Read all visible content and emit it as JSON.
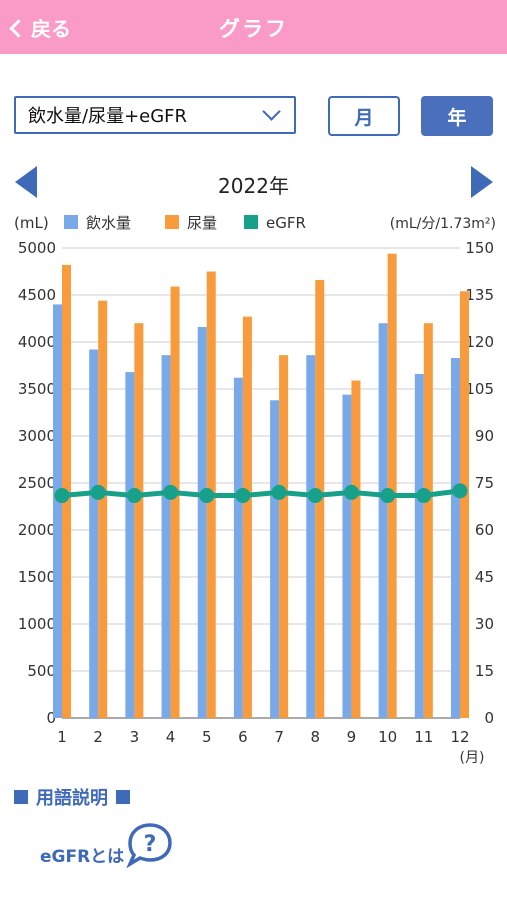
{
  "header": {
    "back_label": "戻る",
    "title": "グラフ"
  },
  "controls": {
    "selected_metric": "飲水量/尿量+eGFR",
    "month_label": "月",
    "year_label": "年",
    "period_label": "2022年"
  },
  "chart_data": {
    "type": "bar",
    "categories": [
      "1",
      "2",
      "3",
      "4",
      "5",
      "6",
      "7",
      "8",
      "9",
      "10",
      "11",
      "12"
    ],
    "x_unit": "(月)",
    "left_unit": "(mL)",
    "right_unit": "(mL/分/1.73m²)",
    "left_ylim": [
      0,
      5000
    ],
    "right_ylim": [
      0,
      150
    ],
    "left_ticks": [
      "0",
      "500",
      "1000",
      "1500",
      "2000",
      "2500",
      "3000",
      "3500",
      "4000",
      "4500",
      "5000"
    ],
    "right_ticks": [
      "0",
      "15",
      "30",
      "45",
      "60",
      "75",
      "90",
      "105",
      "120",
      "135",
      "150"
    ],
    "grid": true,
    "legend_position": "top",
    "series": [
      {
        "name": "飲水量",
        "type": "bar",
        "axis": "left",
        "color": "#7aa9ea",
        "values": [
          4400,
          3920,
          3680,
          3860,
          4160,
          3620,
          3380,
          3860,
          3440,
          4200,
          3660,
          3830
        ]
      },
      {
        "name": "尿量",
        "type": "bar",
        "axis": "left",
        "color": "#f89b3c",
        "values": [
          4820,
          4440,
          4200,
          4590,
          4750,
          4270,
          3860,
          4660,
          3590,
          4940,
          4200,
          4540
        ]
      },
      {
        "name": "eGFR",
        "type": "line",
        "axis": "right",
        "color": "#17a08a",
        "values": [
          71,
          72,
          71,
          72,
          71,
          71,
          72,
          71,
          72,
          71,
          71,
          72.5
        ]
      }
    ]
  },
  "glossary": {
    "title": "用語説明",
    "egfr_link": "eGFRとは",
    "help_icon_glyph": "?"
  }
}
